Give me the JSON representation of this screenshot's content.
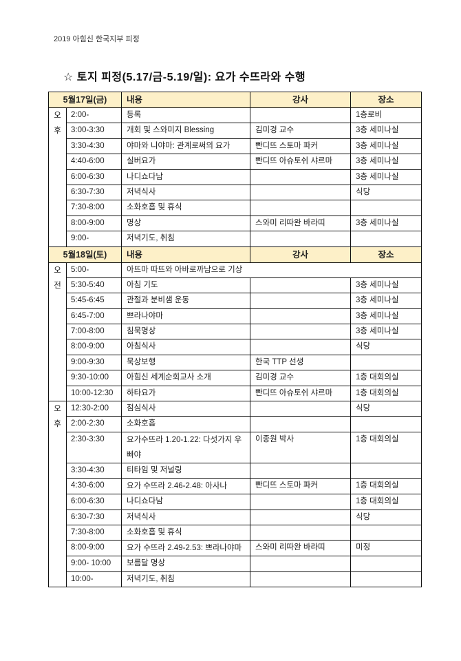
{
  "header": "2019 아힘신 한국지부 피정",
  "title": "☆ 토지 피정(5.17/금-5.19/일): 요가 수뜨라와 수행",
  "columns": {
    "content": "내용",
    "instructor": "강사",
    "location": "장소"
  },
  "days": [
    {
      "date": "5월17일(금)",
      "periods": [
        {
          "label": "오\n후",
          "rows": [
            [
              "2:00-",
              "등록",
              "",
              "1층로비"
            ],
            [
              "3:00-3:30",
              "개회 및 스와미지 Blessing",
              "김미경 교수",
              "3층 세미나실"
            ],
            [
              "3:30-4:30",
              "야마와 니야마: 관계로써의 요가",
              "빤디뜨 스토마 파커",
              "3층 세미나실"
            ],
            [
              "4:40-6:00",
              "실버요가",
              "빤디뜨 아슈토쉬 샤르마",
              "3층 세미나실"
            ],
            [
              "6:00-6:30",
              "나디쇼다남",
              "",
              "3층 세미나실"
            ],
            [
              "6:30-7:30",
              "저녁식사",
              "",
              "식당"
            ],
            [
              "7:30-8:00",
              "소화호흡 및 휴식",
              "",
              ""
            ],
            [
              "8:00-9:00",
              "명상",
              "스와미 리따완 바라띠",
              "3층 세미나실"
            ],
            [
              "9:00-",
              "저녁기도, 취침",
              "",
              ""
            ]
          ]
        }
      ]
    },
    {
      "date": "5월18일(토)",
      "periods": [
        {
          "label": "오\n전",
          "rows": [
            [
              "5:00-",
              "아뜨마 따뜨와 아바로까남으로 기상"
            ],
            [
              "5:30-5:40",
              "아침 기도",
              "",
              "3층 세미나실"
            ],
            [
              "5:45-6:45",
              "관절과 분비샘 운동",
              "",
              "3층 세미나실"
            ],
            [
              "6:45-7:00",
              "쁘라나야마",
              "",
              "3층 세미나실"
            ],
            [
              "7:00-8:00",
              "침묵명상",
              "",
              "3층 세미나실"
            ],
            [
              "8:00-9:00",
              "아침식사",
              "",
              "식당"
            ],
            [
              "9:00-9:30",
              "묵상보행",
              "한국 TTP 선생",
              ""
            ],
            [
              "9:30-10:00",
              "아힘신 세계순회교사 소개",
              "김미경 교수",
              "1층 대회의실"
            ],
            [
              "10:00-12:30",
              "하타요가",
              "빤디뜨 아슈토쉬 샤르마",
              "1층 대회의실"
            ]
          ]
        },
        {
          "label": "오\n후",
          "rows": [
            [
              "12:30-2:00",
              "점심식사",
              "",
              "식당"
            ],
            [
              "2:00-2:30",
              "소화호흡",
              "",
              ""
            ],
            [
              "2:30-3:30",
              "요가수뜨라 1.20-1.22: 다섯가지 우빠야",
              "이종원 박사",
              "1층 대회의실"
            ],
            [
              "3:30-4:30",
              "티타임 및 저널링",
              "",
              ""
            ],
            [
              "4:30-6:00",
              "요가 수뜨라 2.46-2.48: 아사나",
              "빤디뜨 스토마 파커",
              "1층 대회의실"
            ],
            [
              "6:00-6:30",
              "나디쇼다남",
              "",
              "1층 대회의실"
            ],
            [
              "6:30-7:30",
              "저녁식사",
              "",
              "식당"
            ],
            [
              "7:30-8:00",
              "소화호흡 및 휴식",
              "",
              ""
            ],
            [
              "8:00-9:00",
              "요가 수뜨라 2.49-2.53: 쁘라나야마",
              "스와미 리따완 바라띠",
              "미정"
            ],
            [
              "9:00- 10:00",
              "보름달 명상",
              "",
              ""
            ],
            [
              "10:00-",
              "저녁기도, 취침",
              "",
              ""
            ]
          ]
        }
      ]
    }
  ]
}
